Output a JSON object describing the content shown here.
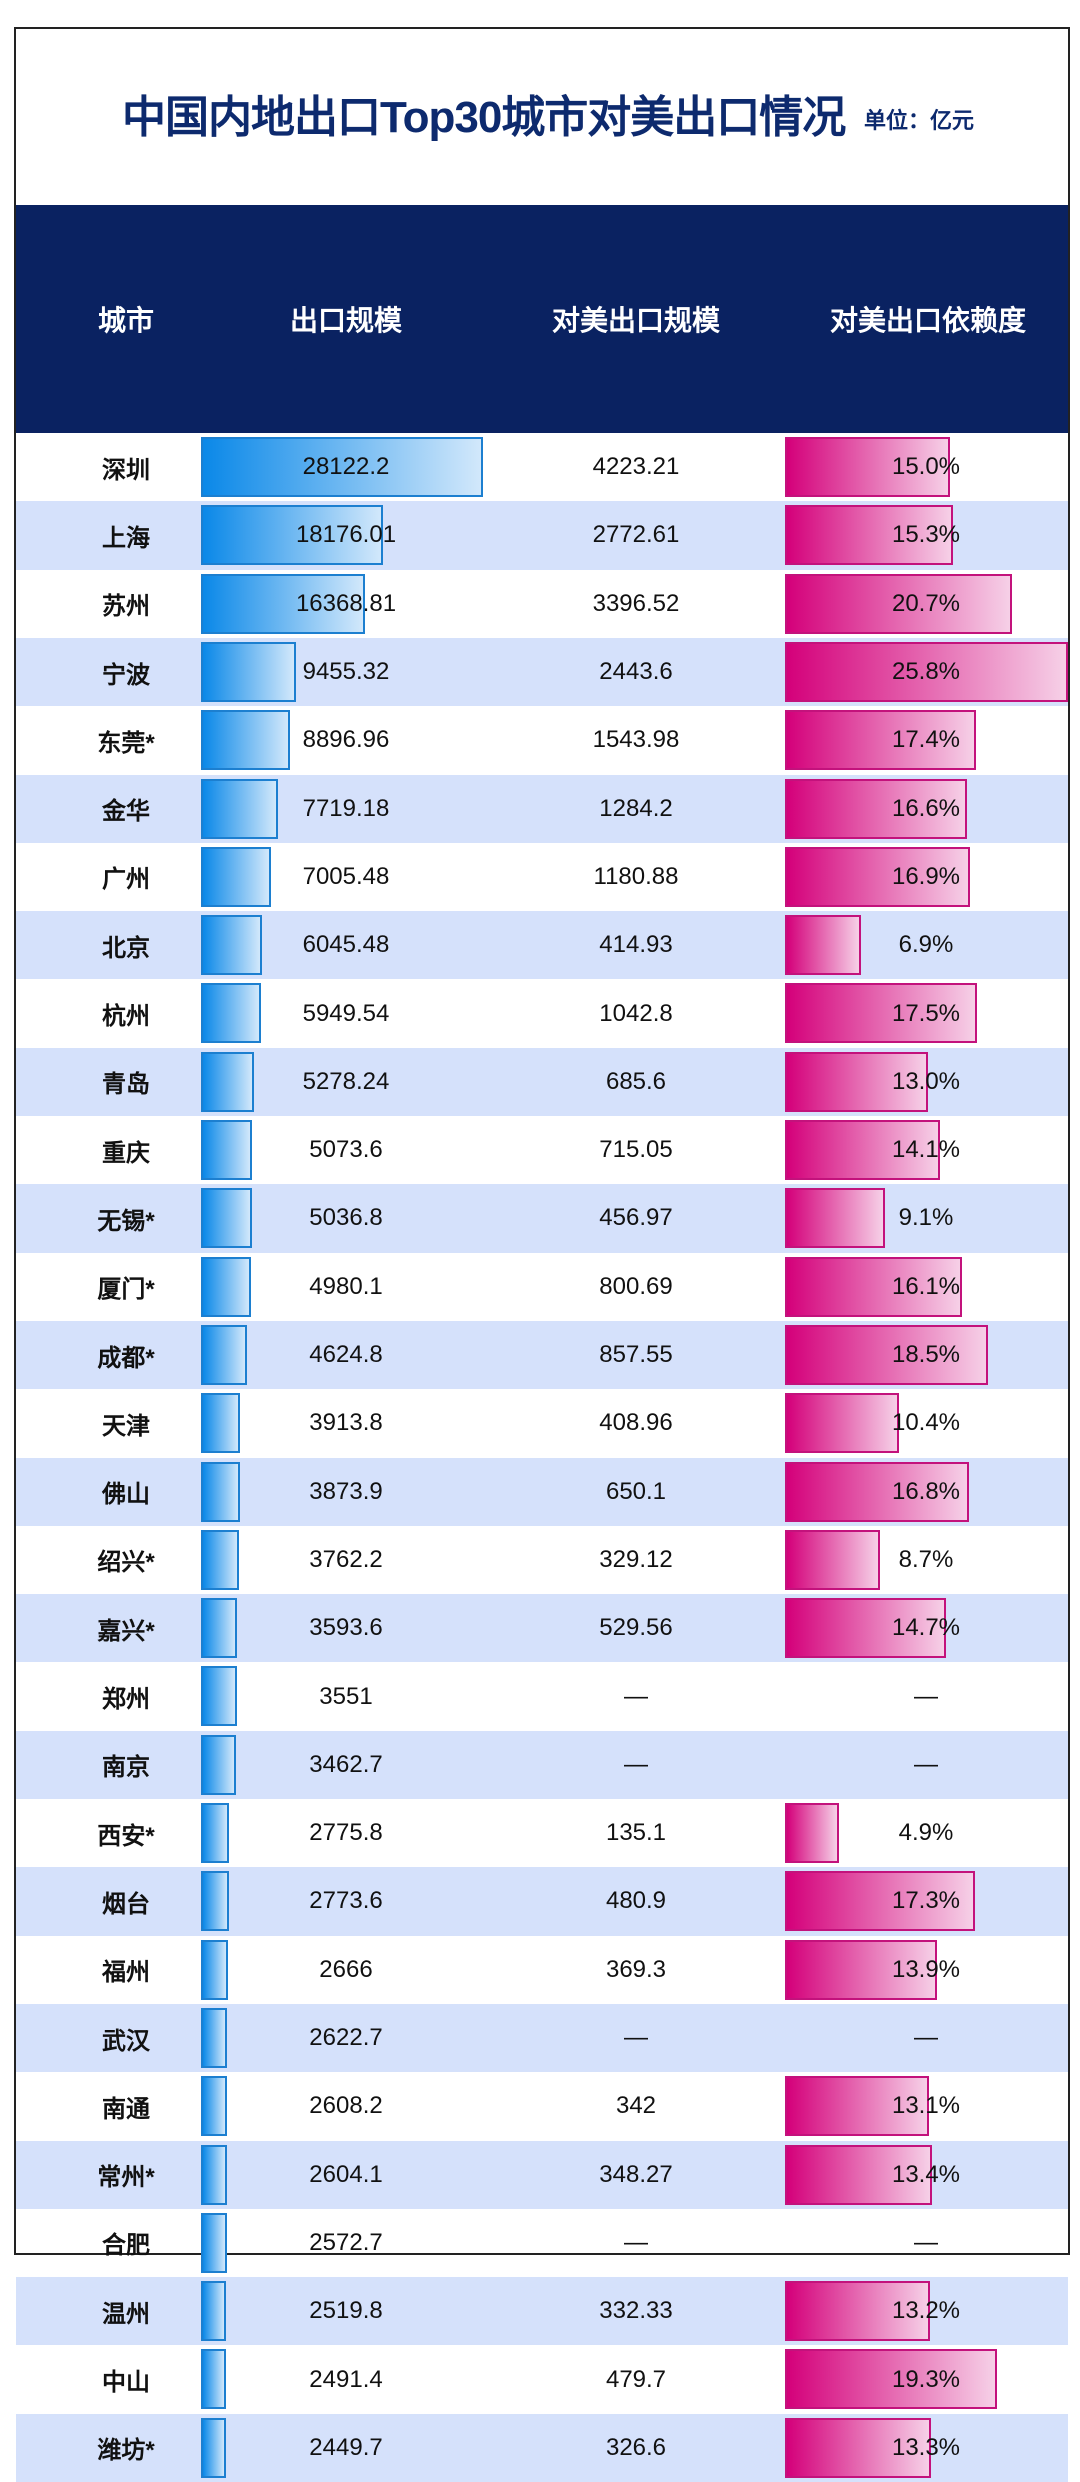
{
  "title": "中国内地出口Top30城市对美出口情况",
  "unit": "单位：亿元",
  "chart_data": {
    "type": "table",
    "columns": [
      "城市",
      "出口规模",
      "对美出口规模",
      "对美出口依赖度"
    ],
    "colors": {
      "header_bg": "#0a2261",
      "title": "#0d2a6e",
      "row_alt": "#d5e1fb",
      "export_bar": "#0a88e8",
      "dependency_bar": "#d4007a"
    },
    "missing_symbol": "—",
    "rows": [
      {
        "city": "深圳",
        "export": "28122.2",
        "us_export": "4223.21",
        "dependency": "15.0%"
      },
      {
        "city": "上海",
        "export": "18176.01",
        "us_export": "2772.61",
        "dependency": "15.3%"
      },
      {
        "city": "苏州",
        "export": "16368.81",
        "us_export": "3396.52",
        "dependency": "20.7%"
      },
      {
        "city": "宁波",
        "export": "9455.32",
        "us_export": "2443.6",
        "dependency": "25.8%"
      },
      {
        "city": "东莞*",
        "export": "8896.96",
        "us_export": "1543.98",
        "dependency": "17.4%"
      },
      {
        "city": "金华",
        "export": "7719.18",
        "us_export": "1284.2",
        "dependency": "16.6%"
      },
      {
        "city": "广州",
        "export": "7005.48",
        "us_export": "1180.88",
        "dependency": "16.9%"
      },
      {
        "city": "北京",
        "export": "6045.48",
        "us_export": "414.93",
        "dependency": "6.9%"
      },
      {
        "city": "杭州",
        "export": "5949.54",
        "us_export": "1042.8",
        "dependency": "17.5%"
      },
      {
        "city": "青岛",
        "export": "5278.24",
        "us_export": "685.6",
        "dependency": "13.0%"
      },
      {
        "city": "重庆",
        "export": "5073.6",
        "us_export": "715.05",
        "dependency": "14.1%"
      },
      {
        "city": "无锡*",
        "export": "5036.8",
        "us_export": "456.97",
        "dependency": "9.1%"
      },
      {
        "city": "厦门*",
        "export": "4980.1",
        "us_export": "800.69",
        "dependency": "16.1%"
      },
      {
        "city": "成都*",
        "export": "4624.8",
        "us_export": "857.55",
        "dependency": "18.5%"
      },
      {
        "city": "天津",
        "export": "3913.8",
        "us_export": "408.96",
        "dependency": "10.4%"
      },
      {
        "city": "佛山",
        "export": "3873.9",
        "us_export": "650.1",
        "dependency": "16.8%"
      },
      {
        "city": "绍兴*",
        "export": "3762.2",
        "us_export": "329.12",
        "dependency": "8.7%"
      },
      {
        "city": "嘉兴*",
        "export": "3593.6",
        "us_export": "529.56",
        "dependency": "14.7%"
      },
      {
        "city": "郑州",
        "export": "3551",
        "us_export": "—",
        "dependency": "—"
      },
      {
        "city": "南京",
        "export": "3462.7",
        "us_export": "—",
        "dependency": "—"
      },
      {
        "city": "西安*",
        "export": "2775.8",
        "us_export": "135.1",
        "dependency": "4.9%"
      },
      {
        "city": "烟台",
        "export": "2773.6",
        "us_export": "480.9",
        "dependency": "17.3%"
      },
      {
        "city": "福州",
        "export": "2666",
        "us_export": "369.3",
        "dependency": "13.9%"
      },
      {
        "city": "武汉",
        "export": "2622.7",
        "us_export": "—",
        "dependency": "—"
      },
      {
        "city": "南通",
        "export": "2608.2",
        "us_export": "342",
        "dependency": "13.1%"
      },
      {
        "city": "常州*",
        "export": "2604.1",
        "us_export": "348.27",
        "dependency": "13.4%"
      },
      {
        "city": "合肥",
        "export": "2572.7",
        "us_export": "—",
        "dependency": "—"
      },
      {
        "city": "温州",
        "export": "2519.8",
        "us_export": "332.33",
        "dependency": "13.2%"
      },
      {
        "city": "中山",
        "export": "2491.4",
        "us_export": "479.7",
        "dependency": "19.3%"
      },
      {
        "city": "潍坊*",
        "export": "2449.7",
        "us_export": "326.6",
        "dependency": "13.3%"
      }
    ]
  }
}
